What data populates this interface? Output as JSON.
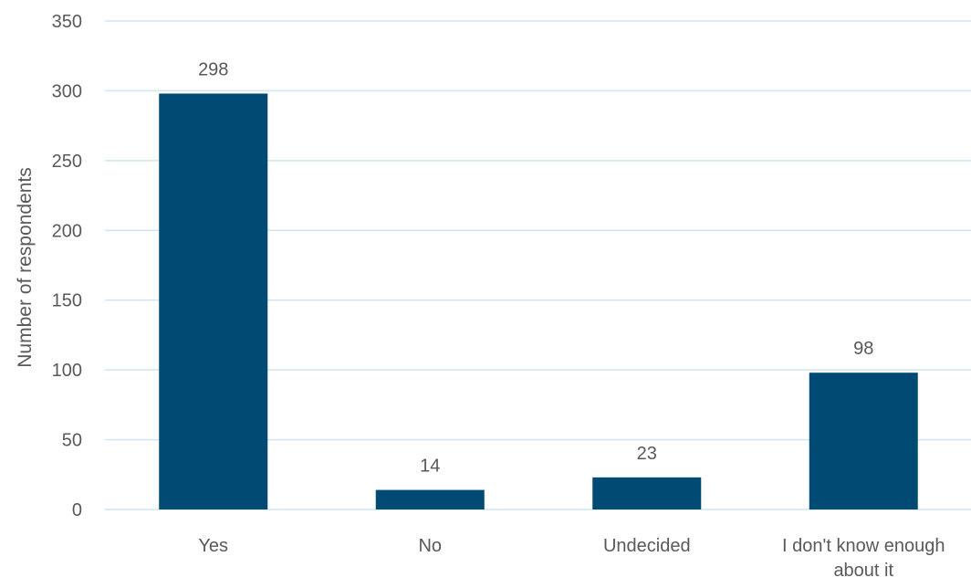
{
  "chart_data": {
    "type": "bar",
    "title": "",
    "xlabel": "",
    "ylabel": "Number of respondents",
    "categories": [
      "Yes",
      "No",
      "Undecided",
      "I don't know enough about it"
    ],
    "category_lines": [
      [
        "Yes"
      ],
      [
        "No"
      ],
      [
        "Undecided"
      ],
      [
        "I don't know enough",
        "about it"
      ]
    ],
    "values": [
      298,
      14,
      23,
      98
    ],
    "ylim": [
      0,
      350
    ],
    "yticks": [
      0,
      50,
      100,
      150,
      200,
      250,
      300,
      350
    ],
    "grid": true,
    "legend": "none",
    "data_labels": true,
    "bar_color": "#004a74",
    "grid_color": "#cfe6f3"
  }
}
